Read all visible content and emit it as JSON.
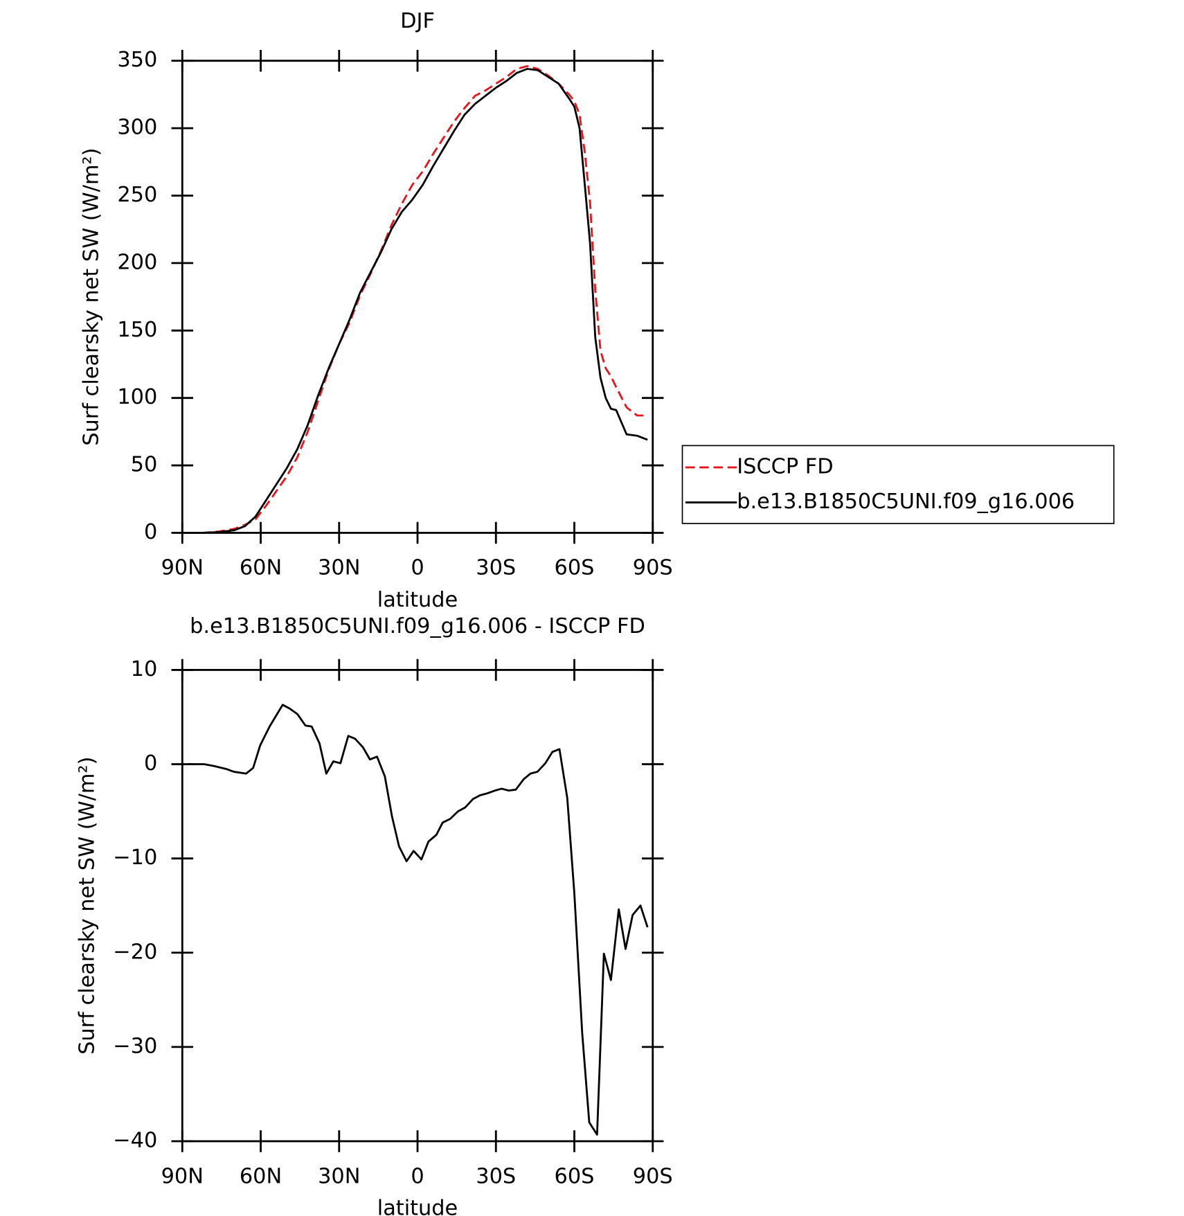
{
  "chart_data": [
    {
      "type": "line",
      "title": "DJF",
      "xlabel": "latitude",
      "ylabel": "Surf clearsky net SW (W/m²)",
      "x": [
        88,
        82,
        76,
        70,
        66,
        62,
        58,
        54,
        50,
        46,
        42,
        38,
        34,
        30,
        26,
        22,
        18,
        14,
        10,
        6,
        2,
        -2,
        -6,
        -10,
        -14,
        -18,
        -22,
        -26,
        -30,
        -34,
        -38,
        -42,
        -46,
        -50,
        -54,
        -58,
        -60,
        -62,
        -64,
        -66,
        -68,
        -70,
        -72,
        -74,
        -76,
        -80,
        -84,
        -88
      ],
      "series": [
        {
          "name": "ISCCP FD",
          "color": "#e8141c",
          "linestyle": "dashed",
          "values": [
            0,
            0,
            1,
            3,
            6,
            10,
            20,
            31,
            42,
            56,
            75,
            98,
            121,
            140,
            156,
            176,
            192,
            209,
            228,
            244,
            258,
            268,
            281,
            293,
            305,
            315,
            324,
            328,
            333,
            338,
            344,
            346,
            344,
            339,
            333,
            325,
            320,
            310,
            282,
            245,
            180,
            135,
            122,
            116,
            108,
            93,
            87,
            87
          ]
        },
        {
          "name": "b.e13.B1850C5UNI.f09_g16.006",
          "color": "#000000",
          "linestyle": "solid",
          "values": [
            0,
            0,
            0.5,
            2,
            5,
            12,
            24,
            36,
            48,
            62,
            80,
            102,
            122,
            140,
            158,
            178,
            193,
            208,
            225,
            238,
            247,
            258,
            272,
            285,
            298,
            310,
            318,
            324,
            330,
            335,
            341,
            344,
            343,
            338,
            333,
            322,
            316,
            300,
            258,
            215,
            145,
            115,
            100,
            92,
            91,
            73,
            72,
            69
          ]
        }
      ],
      "xlim": [
        90,
        -90
      ],
      "xticks": [
        {
          "value": 90,
          "label": "90N"
        },
        {
          "value": 60,
          "label": "60N"
        },
        {
          "value": 30,
          "label": "30N"
        },
        0,
        {
          "value": -30,
          "label": "30S"
        },
        {
          "value": -60,
          "label": "60S"
        },
        {
          "value": -90,
          "label": "90S"
        }
      ],
      "ylim": [
        0,
        350
      ],
      "yticks": [
        0,
        50,
        100,
        150,
        200,
        250,
        300,
        350
      ],
      "legend": "right"
    },
    {
      "type": "line",
      "title": "b.e13.B1850C5UNI.f09_g16.006 - ISCCP FD",
      "xlabel": "latitude",
      "ylabel": "Surf clearsky net SW (W/m²)",
      "x": [
        88,
        81.7,
        77.8,
        73.3,
        70.3,
        65.6,
        62.9,
        60.2,
        56.6,
        51.6,
        48.9,
        45.9,
        42.9,
        40.5,
        37.5,
        34.9,
        32.2,
        29.5,
        26.5,
        23.9,
        20.9,
        18.2,
        15.5,
        12.5,
        9.8,
        7.1,
        4.2,
        1.5,
        -1.5,
        -4.2,
        -7.2,
        -9.6,
        -12.5,
        -15.5,
        -18.2,
        -21.2,
        -23.9,
        -26.6,
        -29.6,
        -32.2,
        -34.9,
        -37.6,
        -40.6,
        -43.2,
        -45.9,
        -48.9,
        -51.6,
        -54.3,
        -57.3,
        -60,
        -63,
        -65.7,
        -68.7,
        -71.3,
        -74,
        -77,
        -79.6,
        -82.3,
        -85.3,
        -88
      ],
      "color": "#000000",
      "values": [
        0,
        0,
        -0.2,
        -0.5,
        -0.8,
        -1.0,
        -0.4,
        2,
        4,
        6.3,
        5.9,
        5.3,
        4.1,
        4.0,
        2.2,
        -1,
        0.3,
        0.1,
        3,
        2.7,
        1.8,
        0.5,
        0.8,
        -1.3,
        -5.5,
        -8.7,
        -10.3,
        -9.2,
        -10.1,
        -8.2,
        -7.5,
        -6.2,
        -5.8,
        -5.0,
        -4.6,
        -3.7,
        -3.3,
        -3.1,
        -2.8,
        -2.6,
        -2.8,
        -2.7,
        -1.6,
        -1.0,
        -0.8,
        0.1,
        1.3,
        1.6,
        -3.6,
        -13.7,
        -28.5,
        -38.0,
        -39.3,
        -20.1,
        -22.9,
        -15.4,
        -19.6,
        -16.0,
        -15.0,
        -17.3
      ],
      "xlim": [
        90,
        -90
      ],
      "xticks": [
        {
          "value": 90,
          "label": "90N"
        },
        {
          "value": 60,
          "label": "60N"
        },
        {
          "value": 30,
          "label": "30N"
        },
        0,
        {
          "value": -30,
          "label": "30S"
        },
        {
          "value": -60,
          "label": "60S"
        },
        {
          "value": -90,
          "label": "90S"
        }
      ],
      "ylim": [
        -40,
        10
      ],
      "yticks": [
        {
          "value": -40,
          "label": "−40"
        },
        {
          "value": -30,
          "label": "−30"
        },
        {
          "value": -20,
          "label": "−20"
        },
        {
          "value": -10,
          "label": "−10"
        },
        0,
        10
      ]
    }
  ]
}
